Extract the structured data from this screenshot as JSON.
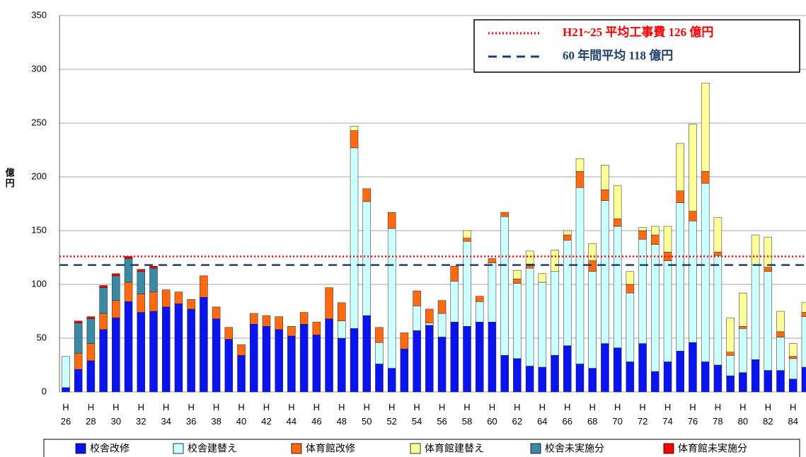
{
  "chart_data": {
    "type": "stacked_bar",
    "ylabel": "億円",
    "categories": [
      "H 26",
      null,
      "H 28",
      null,
      "H 30",
      null,
      "H 32",
      null,
      "H 34",
      null,
      "H 36",
      null,
      "H 38",
      null,
      "H 40",
      null,
      "H 42",
      null,
      "H 44",
      null,
      "H 46",
      null,
      "H 48",
      null,
      "H 50",
      null,
      "H 52",
      null,
      "H 54",
      null,
      "H 56",
      null,
      "H 58",
      null,
      "H 60",
      null,
      "H 62",
      null,
      "H 64",
      null,
      "H 66",
      null,
      "H 68",
      null,
      "H 70",
      null,
      "H 72",
      null,
      "H 74",
      null,
      "H 76",
      null,
      "H 78",
      null,
      "H 80",
      null,
      "H 82",
      null,
      "H 84",
      null
    ],
    "series": [
      {
        "name": "校舎改修",
        "color": "#0a14f0",
        "values": [
          4,
          21,
          29,
          58,
          69,
          84,
          74,
          75,
          79,
          82,
          77,
          88,
          68,
          49,
          34,
          63,
          61,
          58,
          52,
          63,
          53,
          68,
          50,
          59,
          71,
          26,
          22,
          40,
          57,
          62,
          51,
          65,
          61,
          65,
          65,
          34,
          31,
          24,
          23,
          34,
          43,
          26,
          22,
          45,
          41,
          28,
          45,
          19,
          28,
          38,
          46,
          28,
          25,
          15,
          18,
          30,
          20,
          20,
          12,
          23
        ]
      },
      {
        "name": "校舎建替え",
        "color": "#ccffff",
        "values": [
          29,
          0,
          0,
          0,
          0,
          0,
          0,
          0,
          0,
          0,
          0,
          0,
          0,
          0,
          0,
          0,
          0,
          0,
          0,
          0,
          0,
          0,
          16,
          168,
          106,
          20,
          130,
          0,
          23,
          2,
          22,
          38,
          79,
          19,
          55,
          129,
          70,
          91,
          79,
          78,
          98,
          164,
          90,
          133,
          113,
          64,
          97,
          118,
          94,
          138,
          113,
          166,
          102,
          19,
          41,
          88,
          92,
          31,
          19,
          47
        ]
      },
      {
        "name": "体育館改修",
        "color": "#ff6a10",
        "values": [
          0,
          15,
          16,
          15,
          16,
          18,
          17,
          18,
          16,
          11,
          9,
          20,
          11,
          11,
          10,
          10,
          10,
          12,
          9,
          11,
          12,
          29,
          17,
          16,
          12,
          14,
          15,
          15,
          14,
          13,
          12,
          14,
          3,
          5,
          4,
          4,
          4,
          4,
          0,
          0,
          5,
          15,
          10,
          10,
          7,
          8,
          8,
          9,
          8,
          11,
          9,
          11,
          3,
          3,
          2,
          0,
          4,
          5,
          2,
          4
        ]
      },
      {
        "name": "体育館建替え",
        "color": "#ffff99",
        "values": [
          0,
          0,
          0,
          0,
          0,
          0,
          0,
          0,
          0,
          0,
          0,
          0,
          0,
          0,
          0,
          0,
          0,
          0,
          0,
          0,
          0,
          0,
          0,
          4,
          0,
          0,
          0,
          0,
          0,
          0,
          0,
          0,
          7,
          0,
          0,
          0,
          8,
          12,
          8,
          20,
          4,
          12,
          16,
          23,
          31,
          12,
          3,
          8,
          24,
          44,
          81,
          82,
          32,
          32,
          31,
          28,
          28,
          19,
          12,
          9
        ]
      },
      {
        "name": "校舎未実施分",
        "color": "#3a8aa6",
        "values": [
          0,
          28,
          23,
          24,
          23,
          22,
          21,
          22,
          0,
          0,
          0,
          0,
          0,
          0,
          0,
          0,
          0,
          0,
          0,
          0,
          0,
          0,
          0,
          0,
          0,
          0,
          0,
          0,
          0,
          0,
          0,
          0,
          0,
          0,
          0,
          0,
          0,
          0,
          0,
          0,
          0,
          0,
          0,
          0,
          0,
          0,
          0,
          0,
          0,
          0,
          0,
          0,
          0,
          0,
          0,
          0,
          0,
          0,
          0,
          0
        ]
      },
      {
        "name": "体育館未実施分",
        "color": "#ff0000",
        "values": [
          0,
          2,
          2,
          2,
          2,
          2,
          2,
          2,
          0,
          0,
          0,
          0,
          0,
          0,
          0,
          0,
          0,
          0,
          0,
          0,
          0,
          0,
          0,
          0,
          0,
          0,
          0,
          0,
          0,
          0,
          0,
          0,
          0,
          0,
          0,
          0,
          0,
          0,
          0,
          0,
          0,
          0,
          0,
          0,
          0,
          0,
          0,
          0,
          0,
          0,
          0,
          0,
          0,
          0,
          0,
          0,
          0,
          0,
          0,
          0
        ]
      }
    ],
    "reference_lines": [
      {
        "name": "H21~25 平均工事費 126 億円",
        "value": 126,
        "color": "#ff0000",
        "style": "dotted"
      },
      {
        "name": "60 年間平均 118 億円",
        "value": 118,
        "color": "#1f3f6e",
        "style": "dashed"
      }
    ],
    "ylim": [
      0,
      350
    ],
    "yticks": [
      0,
      50,
      100,
      150,
      200,
      250,
      300,
      350
    ],
    "grid": true
  }
}
